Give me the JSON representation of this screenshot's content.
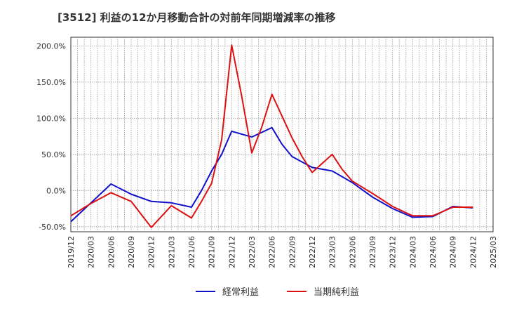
{
  "chart_data": {
    "type": "line",
    "title": "[3512]  利益の12か月移動合計の対前年同期増減率の推移",
    "xlabel": "",
    "ylabel": "",
    "ylim": [
      -57,
      212
    ],
    "y_ticks": [
      200,
      150,
      100,
      50,
      0,
      -50
    ],
    "y_tick_labels": [
      "200.0%",
      "150.0%",
      "100.0%",
      "50.0%",
      "0.0%",
      "-50.0%"
    ],
    "x_tick_labels": [
      "2019/12",
      "2020/03",
      "2020/06",
      "2020/09",
      "2020/12",
      "2021/03",
      "2021/06",
      "2021/09",
      "2021/12",
      "2022/03",
      "2022/06",
      "2022/09",
      "2022/12",
      "2023/03",
      "2023/06",
      "2023/09",
      "2023/12",
      "2024/03",
      "2024/06",
      "2024/09",
      "2024/12",
      "2025/03"
    ],
    "legend_position": "bottom-center",
    "grid": true,
    "series": [
      {
        "name": "経常利益",
        "color": "#1111cc",
        "points": [
          [
            0,
            -43
          ],
          [
            1,
            -17
          ],
          [
            2,
            9
          ],
          [
            3,
            -5
          ],
          [
            4,
            -15
          ],
          [
            5,
            -17
          ],
          [
            6,
            -23
          ],
          [
            6.5,
            0
          ],
          [
            7,
            27
          ],
          [
            7.5,
            50
          ],
          [
            8,
            82
          ],
          [
            9,
            74
          ],
          [
            10,
            87
          ],
          [
            10.5,
            64
          ],
          [
            11,
            47
          ],
          [
            12,
            32
          ],
          [
            13,
            27
          ],
          [
            14,
            11
          ],
          [
            15,
            -9
          ],
          [
            16,
            -25
          ],
          [
            17,
            -37
          ],
          [
            18,
            -36
          ],
          [
            19,
            -22
          ],
          [
            20,
            -24
          ]
        ]
      },
      {
        "name": "当期純利益",
        "color": "#dd1111",
        "points": [
          [
            0,
            -35
          ],
          [
            1,
            -18
          ],
          [
            2,
            -3
          ],
          [
            3,
            -15
          ],
          [
            4,
            -51
          ],
          [
            5,
            -21
          ],
          [
            6,
            -38
          ],
          [
            6.5,
            -15
          ],
          [
            7,
            10
          ],
          [
            7.5,
            70
          ],
          [
            8,
            201
          ],
          [
            8.5,
            130
          ],
          [
            9,
            52
          ],
          [
            9.5,
            88
          ],
          [
            10,
            133
          ],
          [
            10.5,
            103
          ],
          [
            11,
            73
          ],
          [
            11.5,
            47
          ],
          [
            12,
            25
          ],
          [
            13,
            50
          ],
          [
            13.5,
            29
          ],
          [
            14,
            13
          ],
          [
            15,
            -4
          ],
          [
            16,
            -22
          ],
          [
            17,
            -35
          ],
          [
            18,
            -35
          ],
          [
            19,
            -23
          ],
          [
            20,
            -23
          ]
        ]
      }
    ]
  }
}
